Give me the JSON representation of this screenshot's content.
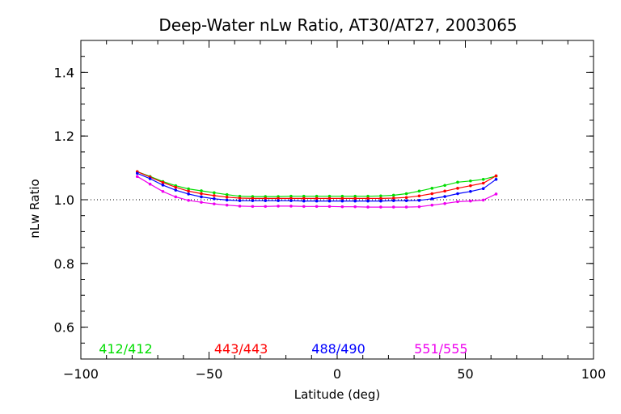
{
  "chart_data": {
    "type": "line",
    "title": "Deep-Water nLw Ratio, AT30/AT27, 2003065",
    "xlabel": "Latitude (deg)",
    "ylabel": "nLw Ratio",
    "xlim": [
      -100,
      100
    ],
    "ylim": [
      0.5,
      1.5
    ],
    "xticks": [
      -100,
      -50,
      0,
      50,
      100
    ],
    "xtick_labels": [
      "−100",
      "−50",
      "0",
      "50",
      "100"
    ],
    "yticks": [
      0.6,
      0.8,
      1.0,
      1.2,
      1.4
    ],
    "ytick_labels": [
      "0.6",
      "0.8",
      "1.0",
      "1.2",
      "1.4"
    ],
    "reference_line": 1.0,
    "grid": false,
    "x": [
      -78,
      -73,
      -68,
      -63,
      -58,
      -53,
      -48,
      -43,
      -38,
      -33,
      -28,
      -23,
      -18,
      -13,
      -8,
      -3,
      2,
      7,
      12,
      17,
      22,
      27,
      32,
      37,
      42,
      47,
      52,
      57,
      62
    ],
    "series": [
      {
        "name": "412/412",
        "color": "#00dd00",
        "values": [
          1.088,
          1.073,
          1.057,
          1.044,
          1.034,
          1.028,
          1.022,
          1.016,
          1.011,
          1.01,
          1.01,
          1.01,
          1.011,
          1.011,
          1.011,
          1.011,
          1.011,
          1.011,
          1.011,
          1.012,
          1.014,
          1.019,
          1.027,
          1.036,
          1.045,
          1.055,
          1.059,
          1.064,
          1.074
        ]
      },
      {
        "name": "443/443",
        "color": "#ff0000",
        "values": [
          1.088,
          1.071,
          1.054,
          1.039,
          1.027,
          1.019,
          1.013,
          1.008,
          1.005,
          1.004,
          1.004,
          1.004,
          1.004,
          1.004,
          1.004,
          1.004,
          1.004,
          1.004,
          1.004,
          1.004,
          1.005,
          1.007,
          1.012,
          1.019,
          1.027,
          1.036,
          1.044,
          1.052,
          1.075
        ]
      },
      {
        "name": "488/490",
        "color": "#0000ff",
        "values": [
          1.083,
          1.066,
          1.046,
          1.03,
          1.018,
          1.009,
          1.003,
          0.999,
          0.997,
          0.997,
          0.997,
          0.997,
          0.997,
          0.996,
          0.996,
          0.996,
          0.996,
          0.996,
          0.996,
          0.996,
          0.997,
          0.997,
          0.998,
          1.003,
          1.01,
          1.019,
          1.026,
          1.035,
          1.064
        ]
      },
      {
        "name": "551/555",
        "color": "#ee00ee",
        "values": [
          1.073,
          1.049,
          1.026,
          1.009,
          0.998,
          0.992,
          0.987,
          0.983,
          0.98,
          0.979,
          0.979,
          0.98,
          0.98,
          0.979,
          0.979,
          0.979,
          0.978,
          0.978,
          0.977,
          0.977,
          0.977,
          0.977,
          0.978,
          0.983,
          0.988,
          0.994,
          0.996,
          0.999,
          1.018
        ]
      }
    ]
  }
}
